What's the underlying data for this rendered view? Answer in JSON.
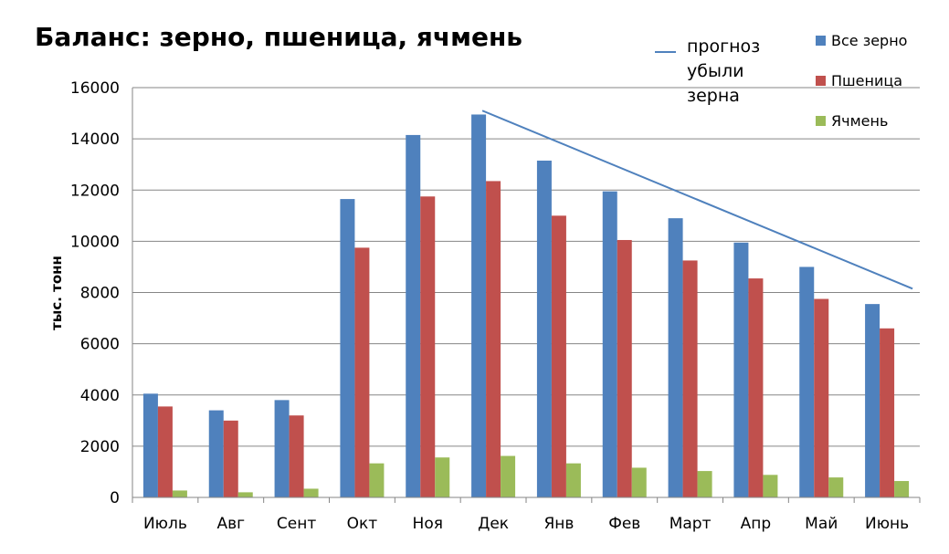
{
  "chart_data": {
    "type": "bar",
    "title": "Баланс: зерно, пшеница, ячмень",
    "ylabel": "тыс. тонн",
    "xlabel": "",
    "ylim": [
      0,
      16000
    ],
    "yticks": [
      0,
      2000,
      4000,
      6000,
      8000,
      10000,
      12000,
      14000,
      16000
    ],
    "grid": true,
    "legend_position": "top-right",
    "categories": [
      "Июль",
      "Авг",
      "Сент",
      "Окт",
      "Ноя",
      "Дек",
      "Янв",
      "Фев",
      "Март",
      "Апр",
      "Май",
      "Июнь"
    ],
    "series": [
      {
        "name": "Все зерно",
        "color": "#4F81BD",
        "values": [
          4050,
          3400,
          3800,
          11650,
          14150,
          14950,
          13150,
          11950,
          10900,
          9950,
          9000,
          7550
        ]
      },
      {
        "name": "Пшеница",
        "color": "#C0504D",
        "values": [
          3550,
          3000,
          3200,
          9750,
          11750,
          12350,
          11000,
          10050,
          9250,
          8550,
          7750,
          6600
        ]
      },
      {
        "name": "Ячмень",
        "color": "#9BBB59",
        "values": [
          270,
          200,
          340,
          1330,
          1560,
          1620,
          1330,
          1160,
          1030,
          880,
          780,
          640
        ]
      }
    ],
    "forecast_line": {
      "label": "прогноз убыли зерна",
      "label_lines": [
        "прогноз",
        "убыли",
        "зерна"
      ],
      "color": "#4F81BD",
      "x_from": "Дек",
      "y_from": 15100,
      "x_to": "Июнь",
      "y_to": 8150
    }
  }
}
